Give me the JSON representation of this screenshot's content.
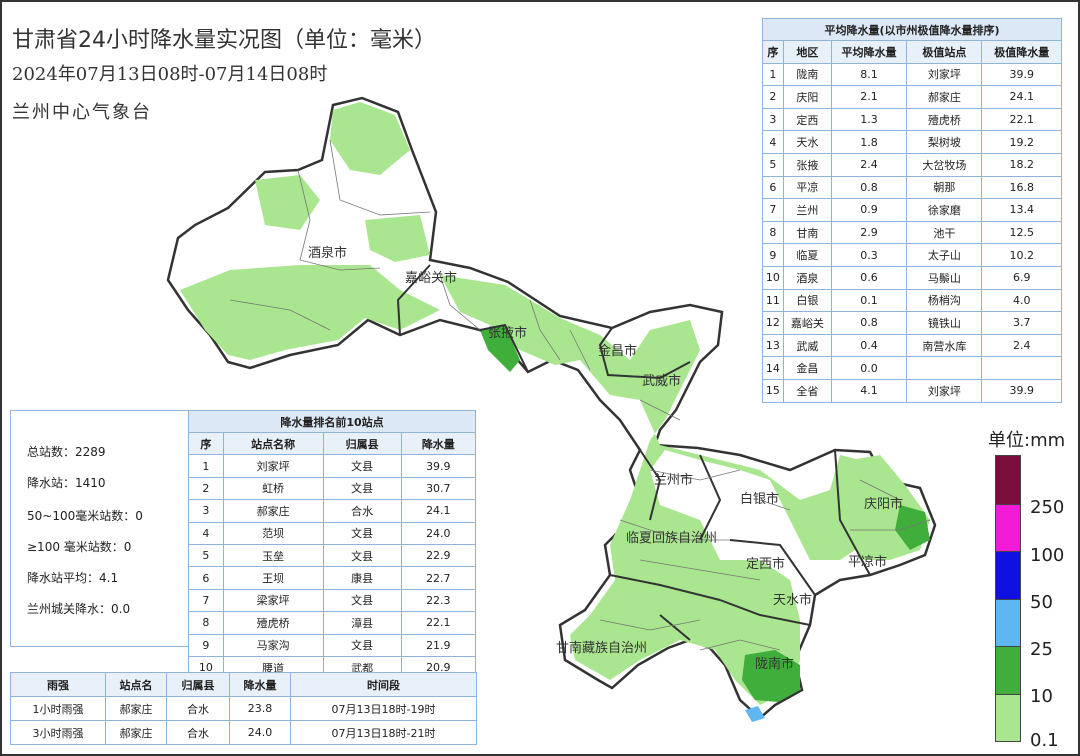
{
  "title": "甘肃省24小时降水量实况图（单位：毫米）",
  "subtitle": "2024年07月13日08时-07月14日08时",
  "org": "兰州中心气象台",
  "map_labels": {
    "jiuquan": "酒泉市",
    "jiayuguan": "嘉峪关市",
    "zhangye": "张掖市",
    "jinchang": "金昌市",
    "wuwei": "武威市",
    "lanzhou": "兰州市",
    "baiyin": "白银市",
    "linxia": "临夏回族自治州",
    "dingxi": "定西市",
    "qingyang": "庆阳市",
    "pingliang": "平凉市",
    "tianshui": "天水市",
    "gannan": "甘南藏族自治州",
    "longnan": "陇南市"
  },
  "avg_table": {
    "caption": "平均降水量(以市州极值降水量排序)",
    "headers": [
      "序",
      "地区",
      "平均降水量",
      "极值站点",
      "极值降水量"
    ],
    "rows": [
      [
        "1",
        "陇南",
        "8.1",
        "刘家坪",
        "39.9"
      ],
      [
        "2",
        "庆阳",
        "2.1",
        "郝家庄",
        "24.1"
      ],
      [
        "3",
        "定西",
        "1.3",
        "殪虎桥",
        "22.1"
      ],
      [
        "4",
        "天水",
        "1.8",
        "梨树坡",
        "19.2"
      ],
      [
        "5",
        "张掖",
        "2.4",
        "大岔牧场",
        "18.2"
      ],
      [
        "6",
        "平凉",
        "0.8",
        "朝那",
        "16.8"
      ],
      [
        "7",
        "兰州",
        "0.9",
        "徐家磨",
        "13.4"
      ],
      [
        "8",
        "甘南",
        "2.9",
        "池干",
        "12.5"
      ],
      [
        "9",
        "临夏",
        "0.3",
        "太子山",
        "10.2"
      ],
      [
        "10",
        "酒泉",
        "0.6",
        "马鬃山",
        "6.9"
      ],
      [
        "11",
        "白银",
        "0.1",
        "杨梢沟",
        "4.0"
      ],
      [
        "12",
        "嘉峪关",
        "0.8",
        "镜铁山",
        "3.7"
      ],
      [
        "13",
        "武威",
        "0.4",
        "南营水库",
        "2.4"
      ],
      [
        "14",
        "金昌",
        "0.0",
        "",
        ""
      ],
      [
        "15",
        "全省",
        "4.1",
        "刘家坪",
        "39.9"
      ]
    ]
  },
  "summary": {
    "total": "总站数：2289",
    "rain": "降水站：1410",
    "s50": "50~100毫米站数：0",
    "s100": "≥100 毫米站数：0",
    "avg": "降水站平均：4.1",
    "city": "兰州城关降水：0.0"
  },
  "top_table": {
    "caption": "降水量排名前10站点",
    "headers": [
      "序",
      "站点名称",
      "归属县",
      "降水量"
    ],
    "rows": [
      [
        "1",
        "刘家坪",
        "文县",
        "39.9"
      ],
      [
        "2",
        "虹桥",
        "文县",
        "30.7"
      ],
      [
        "3",
        "郝家庄",
        "合水",
        "24.1"
      ],
      [
        "4",
        "范坝",
        "文县",
        "24.0"
      ],
      [
        "5",
        "玉垒",
        "文县",
        "22.9"
      ],
      [
        "6",
        "王坝",
        "康县",
        "22.7"
      ],
      [
        "7",
        "梁家坪",
        "文县",
        "22.3"
      ],
      [
        "8",
        "殪虎桥",
        "漳县",
        "22.1"
      ],
      [
        "9",
        "马家沟",
        "文县",
        "21.9"
      ],
      [
        "10",
        "腰道",
        "武都",
        "20.9"
      ]
    ]
  },
  "rain_table": {
    "headers": [
      "雨强",
      "站点名",
      "归属县",
      "降水量",
      "时间段"
    ],
    "rows": [
      [
        "1小时雨强",
        "郝家庄",
        "合水",
        "23.8",
        "07月13日18时-19时"
      ],
      [
        "3小时雨强",
        "郝家庄",
        "合水",
        "24.0",
        "07月13日18时-21时"
      ]
    ]
  },
  "legend": {
    "title": "单位:mm",
    "labels": [
      "250",
      "100",
      "50",
      "25",
      "10",
      "0.1"
    ],
    "colors": [
      "#7a0f3e",
      "#f21bd6",
      "#1010e0",
      "#5fb7f2",
      "#3fae3a",
      "#a9e68f"
    ]
  }
}
